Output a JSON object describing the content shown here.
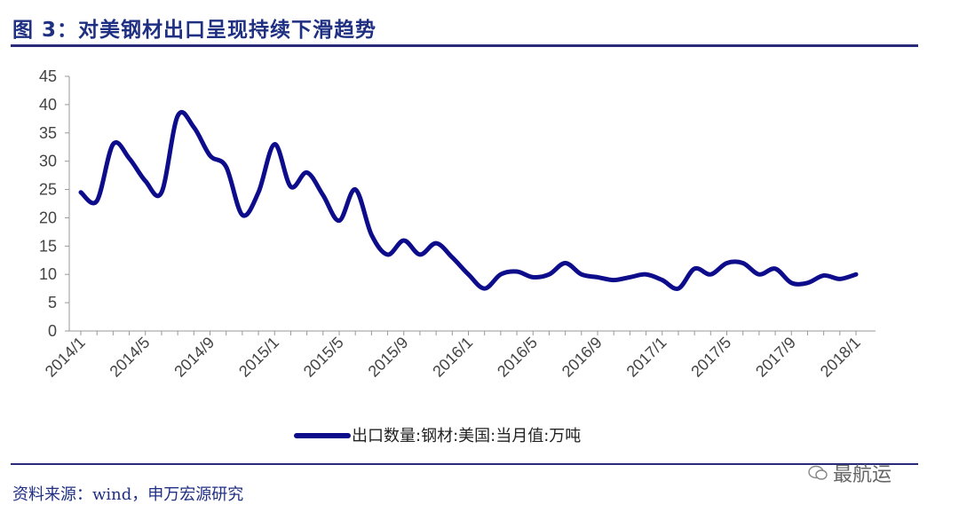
{
  "header": {
    "title": "图 3：对美钢材出口呈现持续下滑趋势"
  },
  "footer": {
    "source": "资料来源：wind，申万宏源研究",
    "watermark": "最航运"
  },
  "colors": {
    "line": "#0d0d8c",
    "title": "#1f2f82",
    "rule": "#2a2a7a"
  },
  "chart_data": {
    "type": "line",
    "title": "",
    "xlabel": "",
    "ylabel": "",
    "ylim": [
      0,
      45
    ],
    "yticks": [
      0,
      5,
      10,
      15,
      20,
      25,
      30,
      35,
      40,
      45
    ],
    "xtick_labels": [
      "2014/1",
      "2014/5",
      "2014/9",
      "2015/1",
      "2015/5",
      "2015/9",
      "2016/1",
      "2016/5",
      "2016/9",
      "2017/1",
      "2017/5",
      "2017/9",
      "2018/1"
    ],
    "legend_position": "bottom",
    "grid": false,
    "x": [
      "2014/1",
      "2014/2",
      "2014/3",
      "2014/4",
      "2014/5",
      "2014/6",
      "2014/7",
      "2014/8",
      "2014/9",
      "2014/10",
      "2014/11",
      "2014/12",
      "2015/1",
      "2015/2",
      "2015/3",
      "2015/4",
      "2015/5",
      "2015/6",
      "2015/7",
      "2015/8",
      "2015/9",
      "2015/10",
      "2015/11",
      "2015/12",
      "2016/1",
      "2016/2",
      "2016/3",
      "2016/4",
      "2016/5",
      "2016/6",
      "2016/7",
      "2016/8",
      "2016/9",
      "2016/10",
      "2016/11",
      "2016/12",
      "2017/1",
      "2017/2",
      "2017/3",
      "2017/4",
      "2017/5",
      "2017/6",
      "2017/7",
      "2017/8",
      "2017/9",
      "2017/10",
      "2017/11",
      "2017/12",
      "2018/1"
    ],
    "series": [
      {
        "name": "出口数量:钢材:美国:当月值:万吨",
        "values": [
          24.5,
          23,
          33,
          30.5,
          26.5,
          24.5,
          38,
          36,
          31,
          29,
          20.5,
          24.5,
          33,
          25.5,
          28,
          24,
          19.5,
          25,
          17,
          13.5,
          16,
          13.5,
          15.5,
          13,
          10,
          7.5,
          10,
          10.5,
          9.5,
          10,
          12,
          10,
          9.5,
          9,
          9.5,
          10,
          9,
          7.5,
          11,
          10,
          12,
          12,
          10,
          11,
          8.5,
          8.5,
          9.8,
          9.2,
          10
        ]
      }
    ]
  }
}
